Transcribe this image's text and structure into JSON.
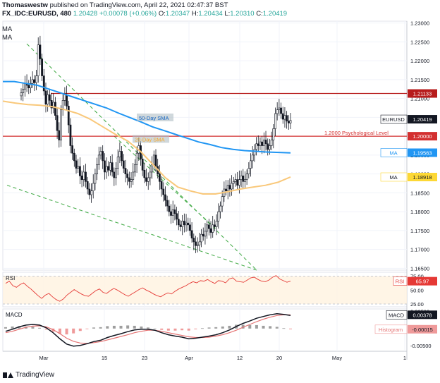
{
  "header": {
    "line1_user": "Thomaswestw",
    "line1_rest": " published on TradingView.com, April 22, 2021 02:47:37 BST",
    "symbol": "FX_IDC:EURUSD, 480",
    "last": "1.20428",
    "change": "+0.00078 (+0.06%)",
    "o_label": "O:",
    "o": "1.20347",
    "h_label": "H:",
    "h": "1.20434",
    "l_label": "L:",
    "l": "1.20310",
    "c_label": "C:",
    "c": "1.20419"
  },
  "ma_labels": [
    "MA",
    "MA"
  ],
  "footer": {
    "brand": "TradingView"
  },
  "colors": {
    "up": "#26a69a",
    "down": "#131722",
    "ma50": "#2196f3",
    "ma20": "#f9c87a",
    "hline": "#b71c1c",
    "trend": "#4caf50",
    "rsi": "#e53935",
    "macd": "#131722",
    "signal": "#e57373",
    "hist_pos": "#9e9e9e",
    "hist_neg": "#ef9a9a"
  },
  "chart_data": [
    {
      "type": "line",
      "title": "EURUSD 480",
      "x_ticks": [
        "Mar",
        "15",
        "23",
        "Apr",
        "12",
        "20",
        "May",
        "1"
      ],
      "y_ticks": [
        "1.23000",
        "1.22500",
        "1.22000",
        "1.21500",
        "1.21000",
        "1.20500",
        "1.20000",
        "1.19500",
        "1.19000",
        "1.18500",
        "1.18000",
        "1.17500",
        "1.17000",
        "1.16500"
      ],
      "ylim": [
        1.1645,
        1.2305
      ],
      "series": [
        {
          "name": "EURUSD",
          "close": [
            1.2115,
            1.2125,
            1.214,
            1.2135,
            1.2128,
            1.214,
            1.215,
            1.2142,
            1.216,
            1.2242,
            1.2205,
            1.216,
            1.212,
            1.2085,
            1.211,
            1.2095,
            1.2075,
            1.209,
            1.2055,
            1.2015,
            1.199,
            1.207,
            1.2095,
            1.211,
            1.208,
            1.203,
            1.1975,
            1.1955,
            1.1935,
            1.1915,
            1.192,
            1.1895,
            1.1885,
            1.1905,
            1.188,
            1.186,
            1.1845,
            1.1855,
            1.1875,
            1.19,
            1.1925,
            1.195,
            1.196,
            1.1935,
            1.1905,
            1.192,
            1.191,
            1.193,
            1.1905,
            1.189,
            1.1915,
            1.1945,
            1.196,
            1.1935,
            1.1915,
            1.19,
            1.189,
            1.188,
            1.1885,
            1.1905,
            1.1925,
            1.1955,
            1.1975,
            1.194,
            1.191,
            1.189,
            1.188,
            1.189,
            1.1905,
            1.1925,
            1.195,
            1.192,
            1.19,
            1.188,
            1.186,
            1.1845,
            1.183,
            1.1815,
            1.18,
            1.179,
            1.1805,
            1.1795,
            1.178,
            1.1765,
            1.176,
            1.1775,
            1.1765,
            1.177,
            1.1765,
            1.175,
            1.173,
            1.172,
            1.171,
            1.1712,
            1.172,
            1.174,
            1.1735,
            1.1748,
            1.1765,
            1.1755,
            1.1745,
            1.1765,
            1.176,
            1.1775,
            1.18,
            1.1815,
            1.184,
            1.186,
            1.1855,
            1.187,
            1.186,
            1.1875,
            1.188,
            1.1885,
            1.187,
            1.1885,
            1.1895,
            1.188,
            1.1885,
            1.19,
            1.1915,
            1.1935,
            1.195,
            1.1965,
            1.198,
            1.1975,
            1.1985,
            1.1975,
            1.199,
            1.198,
            1.1965,
            1.1975,
            1.199,
            1.202,
            1.206,
            1.207,
            1.2075,
            1.206,
            1.2045,
            1.2055,
            1.204,
            1.2035,
            1.2042
          ]
        },
        {
          "name": "50-Day SMA",
          "values": [
            1.2145,
            1.2145,
            1.214,
            1.2135,
            1.2125,
            1.2115,
            1.2105,
            1.2095,
            1.2085,
            1.2075,
            1.2062,
            1.205,
            1.2038,
            1.2025,
            1.2015,
            1.2005,
            1.1995,
            1.1985,
            1.1978,
            1.197,
            1.1965,
            1.1962,
            1.196,
            1.1958,
            1.1957,
            1.1956
          ]
        },
        {
          "name": "20-Day SMA",
          "values": [
            1.2093,
            1.2088,
            1.2084,
            1.2082,
            1.2078,
            1.207,
            1.206,
            1.2045,
            1.2025,
            1.2005,
            1.1987,
            1.196,
            1.1925,
            1.189,
            1.1865,
            1.1855,
            1.1847,
            1.1847,
            1.1853,
            1.186,
            1.1865,
            1.187,
            1.1878,
            1.1892
          ]
        }
      ],
      "hlines": [
        {
          "value": 1.21133,
          "label": "1.21133",
          "color": "#b71c1c"
        },
        {
          "value": 1.2,
          "label": "1.20000",
          "text": "1.2000 Psychological Level",
          "color": "#d32f2f"
        }
      ],
      "annotations": [
        "50-Day SMA",
        "20-Day SMA"
      ],
      "price_tags": [
        {
          "name": "EURUSD",
          "value": "1.20419"
        },
        {
          "name": "MA",
          "value": "1.19563"
        },
        {
          "name": "MA",
          "value": "1.18918"
        }
      ]
    },
    {
      "type": "line",
      "title": "RSI",
      "y_ticks": [
        "75.00",
        "50.00",
        "25.00"
      ],
      "ylim": [
        20,
        82
      ],
      "value_tag": "65.97",
      "series": [
        {
          "name": "RSI",
          "values": [
            62,
            66,
            58,
            55,
            60,
            63,
            57,
            52,
            46,
            40,
            35,
            41,
            44,
            38,
            33,
            30,
            34,
            41,
            46,
            51,
            47,
            43,
            40,
            39,
            44,
            49,
            52,
            46,
            44,
            49,
            53,
            50,
            46,
            42,
            39,
            43,
            47,
            51,
            54,
            50,
            47,
            43,
            40,
            38,
            42,
            45,
            43,
            48,
            52,
            55,
            58,
            62,
            65,
            63,
            67,
            66,
            69,
            65,
            62,
            67,
            66,
            63,
            70,
            72,
            66,
            65,
            64,
            68,
            72,
            73,
            69,
            66,
            65,
            68,
            73,
            76,
            70,
            67,
            64,
            66
          ]
        }
      ]
    },
    {
      "type": "line",
      "title": "MACD",
      "y_ticks": [
        "0.00500",
        "0.00000",
        "-0.00500"
      ],
      "ylim": [
        -0.0066,
        0.0057
      ],
      "tags": [
        {
          "name": "MACD",
          "value": "0.00378"
        },
        {
          "name": "Histogram",
          "value": "-0.00015"
        }
      ],
      "series": [
        {
          "name": "MACD",
          "values": [
            -0.0008,
            -0.0002,
            0.0005,
            0.001,
            0.0012,
            0.001,
            0.0002,
            -0.0012,
            -0.003,
            -0.0045,
            -0.0051,
            -0.0049,
            -0.0044,
            -0.0038,
            -0.0034,
            -0.0026,
            -0.002,
            -0.0015,
            -0.0009,
            -0.0004,
            -0.0002,
            -0.0002,
            -0.0005,
            -0.0012,
            -0.0018,
            -0.0022,
            -0.0025,
            -0.003,
            -0.0028,
            -0.0025,
            -0.0022,
            -0.0018,
            -0.0012,
            -0.0004,
            0.0006,
            0.0015,
            0.0022,
            0.003,
            0.0035,
            0.004,
            0.0043,
            0.0041,
            0.0038
          ]
        },
        {
          "name": "Signal",
          "values": [
            -0.0012,
            -0.0008,
            -0.0002,
            0.0004,
            0.0007,
            0.0008,
            0.0005,
            -0.0003,
            -0.0015,
            -0.0028,
            -0.0037,
            -0.0042,
            -0.0043,
            -0.0041,
            -0.0038,
            -0.0033,
            -0.0028,
            -0.0023,
            -0.0018,
            -0.0012,
            -0.0008,
            -0.0005,
            -0.0005,
            -0.0008,
            -0.0012,
            -0.0016,
            -0.002,
            -0.0024,
            -0.0026,
            -0.0026,
            -0.0025,
            -0.0022,
            -0.0018,
            -0.0012,
            -0.0005,
            0.0004,
            0.0012,
            0.002,
            0.0027,
            0.0033,
            0.0038,
            0.004,
            0.004
          ]
        },
        {
          "name": "Histogram",
          "values": [
            0.0004,
            0.0006,
            0.0007,
            0.0006,
            0.0005,
            0.0002,
            -0.0003,
            -0.0009,
            -0.0015,
            -0.0017,
            -0.0014,
            -0.0007,
            -0.0001,
            0.0003,
            0.0004,
            0.0007,
            0.0008,
            0.0008,
            0.0009,
            0.0008,
            0.0006,
            0.0003,
            0.0,
            -0.0004,
            -0.0006,
            -0.0006,
            -0.0005,
            -0.0006,
            -0.0002,
            0.0001,
            0.0003,
            0.0004,
            0.0006,
            0.0008,
            0.0011,
            0.0011,
            0.001,
            0.001,
            0.0008,
            0.0007,
            0.0005,
            0.0001,
            -0.0002
          ]
        }
      ]
    }
  ]
}
